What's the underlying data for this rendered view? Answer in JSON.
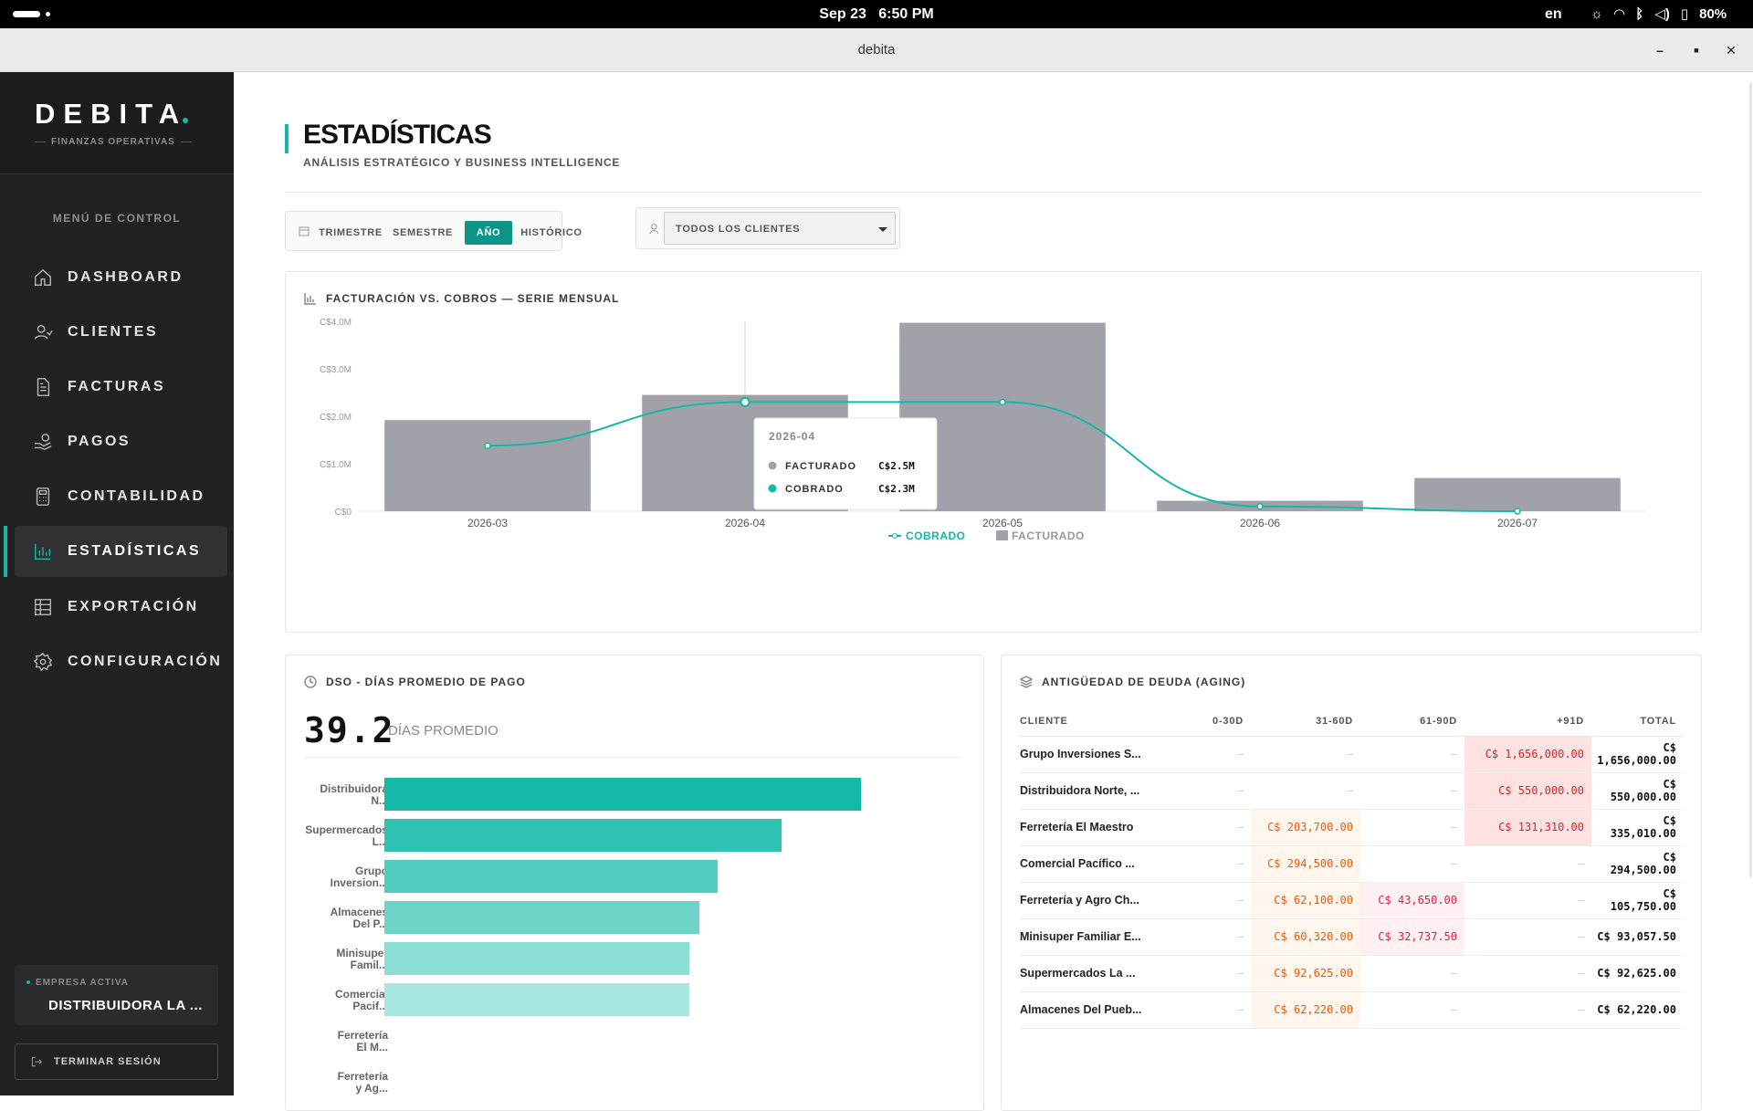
{
  "system": {
    "date": "Sep 23",
    "time": "6:50 PM",
    "lang": "en",
    "battery": "80%"
  },
  "window": {
    "title": "debita"
  },
  "sidebar": {
    "brand": "DEBITA",
    "brand_sub": "FINANZAS OPERATIVAS",
    "menu_title": "MENÚ DE CONTROL",
    "items": [
      {
        "label": "DASHBOARD",
        "icon": "home-icon",
        "active": false
      },
      {
        "label": "CLIENTES",
        "icon": "user-icon",
        "active": false
      },
      {
        "label": "FACTURAS",
        "icon": "document-icon",
        "active": false
      },
      {
        "label": "PAGOS",
        "icon": "payment-icon",
        "active": false
      },
      {
        "label": "CONTABILIDAD",
        "icon": "calculator-icon",
        "active": false
      },
      {
        "label": "ESTADÍSTICAS",
        "icon": "bar-chart-icon",
        "active": true
      },
      {
        "label": "EXPORTACIÓN",
        "icon": "table-icon",
        "active": false
      },
      {
        "label": "CONFIGURACIÓN",
        "icon": "gear-icon",
        "active": false
      }
    ],
    "empresa_label": "EMPRESA ACTIVA",
    "empresa_value": "DISTRIBUIDORA LA ...",
    "logout_label": "TERMINAR SESIÓN"
  },
  "header": {
    "title": "ESTADÍSTICAS",
    "subtitle": "ANÁLISIS ESTRATÉGICO Y BUSINESS INTELLIGENCE"
  },
  "filters": {
    "periods": [
      "TRIMESTRE",
      "SEMESTRE",
      "AÑO",
      "HISTÓRICO"
    ],
    "active_period": "AÑO",
    "client_select": "TODOS LOS CLIENTES"
  },
  "billing_card": {
    "title": "FACTURACIÓN VS. COBROS — SERIE MENSUAL"
  },
  "chart_data": {
    "type": "bar",
    "categories": [
      "2026-03",
      "2026-04",
      "2026-05",
      "2026-06",
      "2026-07"
    ],
    "series": [
      {
        "name": "FACTURADO",
        "type": "bar",
        "color": "#a1a1aa",
        "values": [
          1.92,
          2.45,
          3.97,
          0.22,
          0.7
        ]
      },
      {
        "name": "COBRADO",
        "type": "line",
        "color": "#14b8a6",
        "values": [
          1.38,
          2.3,
          2.3,
          0.1,
          0.0
        ]
      }
    ],
    "yticks": [
      "C$0",
      "C$1.0M",
      "C$2.0M",
      "C$3.0M",
      "C$4.0M"
    ],
    "ylim": [
      0,
      4
    ],
    "legend_position": "bottom",
    "tooltip": {
      "title": "2026-04",
      "rows": [
        {
          "label": "FACTURADO",
          "value": "C$2.5M",
          "color": "#a1a1aa"
        },
        {
          "label": "COBRADO",
          "value": "C$2.3M",
          "color": "#14b8a6"
        }
      ]
    }
  },
  "dso_card": {
    "title": "DSO - DÍAS PROMEDIO DE PAGO",
    "value": "39.2",
    "unit": "DÍAS PROMEDIO",
    "rows": [
      {
        "label1": "Distribuidora",
        "label2": "N...",
        "value": 100,
        "color": "#14b8a6"
      },
      {
        "label1": "Supermercados",
        "label2": "L...",
        "value": 83.3,
        "color": "#2dc3b0"
      },
      {
        "label1": "Grupo",
        "label2": "Inversion...",
        "value": 70,
        "color": "#4fccbd"
      },
      {
        "label1": "Almacenes",
        "label2": "Del P...",
        "value": 66,
        "color": "#6cd5c8"
      },
      {
        "label1": "Minisuper",
        "label2": "Famil...",
        "value": 64,
        "color": "#8bdfd5"
      },
      {
        "label1": "Comercial",
        "label2": "Pacif...",
        "value": 64,
        "color": "#a8e7df"
      },
      {
        "label1": "Ferretería",
        "label2": "El M...",
        "value": 0,
        "color": "#c5efea"
      },
      {
        "label1": "Ferretería",
        "label2": "y Ag...",
        "value": 0,
        "color": "#d8f4f0"
      }
    ]
  },
  "aging_card": {
    "title": "ANTIGÜEDAD DE DEUDA (AGING)",
    "headers": [
      "CLIENTE",
      "0-30D",
      "31-60D",
      "61-90D",
      "+91D",
      "TOTAL"
    ],
    "dash": "—",
    "rows": [
      {
        "cliente": "Grupo Inversiones S...",
        "d30": "",
        "d60": "",
        "d90": "",
        "d91": "C$ 1,656,000.00",
        "total": "C$ 1,656,000.00"
      },
      {
        "cliente": "Distribuidora Norte, ...",
        "d30": "",
        "d60": "",
        "d90": "",
        "d91": "C$ 550,000.00",
        "total": "C$ 550,000.00"
      },
      {
        "cliente": "Ferretería El Maestro",
        "d30": "",
        "d60": "C$ 203,700.00",
        "d90": "",
        "d91": "C$ 131,310.00",
        "total": "C$ 335,010.00"
      },
      {
        "cliente": "Comercial Pacífico ...",
        "d30": "",
        "d60": "C$ 294,500.00",
        "d90": "",
        "d91": "",
        "total": "C$ 294,500.00"
      },
      {
        "cliente": "Ferretería y Agro Ch...",
        "d30": "",
        "d60": "C$ 62,100.00",
        "d90": "C$ 43,650.00",
        "d91": "",
        "total": "C$ 105,750.00"
      },
      {
        "cliente": "Minisuper Familiar E...",
        "d30": "",
        "d60": "C$ 60,320.00",
        "d90": "C$ 32,737.50",
        "d91": "",
        "total": "C$ 93,057.50"
      },
      {
        "cliente": "Supermercados La ...",
        "d30": "",
        "d60": "C$ 92,625.00",
        "d90": "",
        "d91": "",
        "total": "C$ 92,625.00"
      },
      {
        "cliente": "Almacenes Del Pueb...",
        "d30": "",
        "d60": "C$ 62,220.00",
        "d90": "",
        "d91": "",
        "total": "C$ 62,220.00"
      }
    ]
  }
}
